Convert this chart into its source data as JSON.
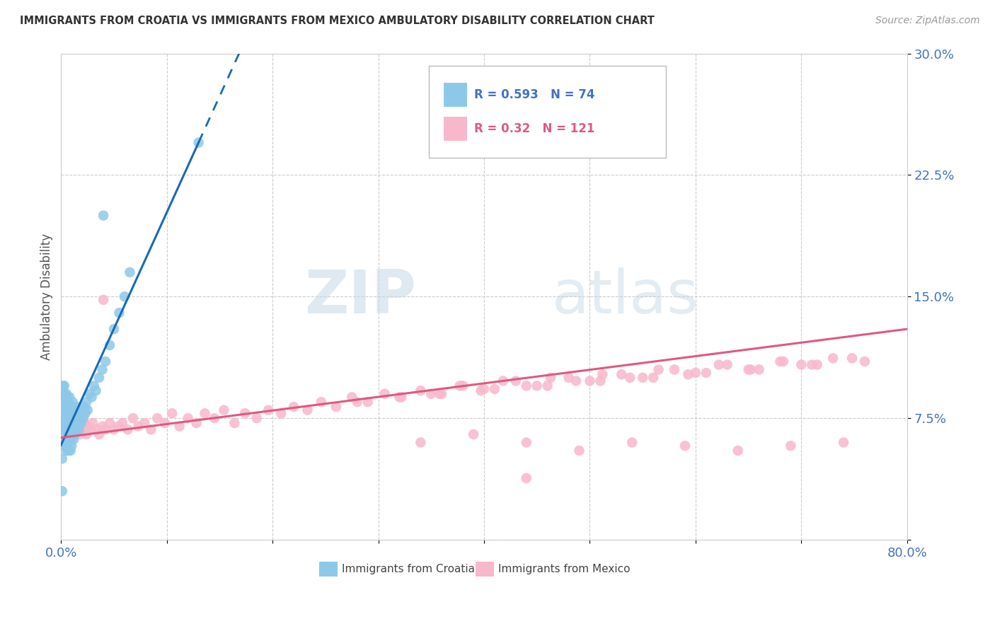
{
  "title": "IMMIGRANTS FROM CROATIA VS IMMIGRANTS FROM MEXICO AMBULATORY DISABILITY CORRELATION CHART",
  "source": "Source: ZipAtlas.com",
  "ylabel": "Ambulatory Disability",
  "xlim": [
    0.0,
    0.8
  ],
  "ylim": [
    0.0,
    0.3
  ],
  "xticks": [
    0.0,
    0.1,
    0.2,
    0.3,
    0.4,
    0.5,
    0.6,
    0.7,
    0.8
  ],
  "yticks": [
    0.0,
    0.075,
    0.15,
    0.225,
    0.3
  ],
  "ytick_labels": [
    "",
    "7.5%",
    "15.0%",
    "22.5%",
    "30.0%"
  ],
  "xtick_labels": [
    "0.0%",
    "",
    "",
    "",
    "",
    "",
    "",
    "",
    "80.0%"
  ],
  "croatia_R": 0.593,
  "croatia_N": 74,
  "mexico_R": 0.32,
  "mexico_N": 121,
  "croatia_color": "#8ec8e8",
  "mexico_color": "#f7b8cc",
  "croatia_line_color": "#1a6ab5",
  "mexico_line_color": "#e05880",
  "background_color": "#ffffff",
  "grid_color": "#cccccc",
  "watermark_zip": "ZIP",
  "watermark_atlas": "atlas",
  "legend_label_croatia": "Immigrants from Croatia",
  "legend_label_mexico": "Immigrants from Mexico",
  "croatia_x": [
    0.001,
    0.001,
    0.002,
    0.002,
    0.002,
    0.002,
    0.002,
    0.003,
    0.003,
    0.003,
    0.003,
    0.003,
    0.003,
    0.004,
    0.004,
    0.004,
    0.004,
    0.004,
    0.005,
    0.005,
    0.005,
    0.005,
    0.005,
    0.005,
    0.006,
    0.006,
    0.006,
    0.006,
    0.007,
    0.007,
    0.007,
    0.007,
    0.008,
    0.008,
    0.008,
    0.009,
    0.009,
    0.009,
    0.01,
    0.01,
    0.01,
    0.011,
    0.011,
    0.012,
    0.012,
    0.013,
    0.013,
    0.014,
    0.015,
    0.015,
    0.016,
    0.017,
    0.018,
    0.019,
    0.02,
    0.021,
    0.022,
    0.023,
    0.024,
    0.025,
    0.027,
    0.029,
    0.031,
    0.033,
    0.036,
    0.039,
    0.042,
    0.046,
    0.05,
    0.055,
    0.06,
    0.065,
    0.04,
    0.13
  ],
  "croatia_y": [
    0.05,
    0.03,
    0.072,
    0.06,
    0.085,
    0.095,
    0.068,
    0.078,
    0.09,
    0.065,
    0.08,
    0.058,
    0.095,
    0.072,
    0.085,
    0.062,
    0.075,
    0.088,
    0.06,
    0.07,
    0.082,
    0.055,
    0.075,
    0.09,
    0.068,
    0.08,
    0.058,
    0.072,
    0.065,
    0.078,
    0.055,
    0.085,
    0.062,
    0.075,
    0.088,
    0.065,
    0.078,
    0.055,
    0.068,
    0.082,
    0.058,
    0.072,
    0.085,
    0.062,
    0.075,
    0.065,
    0.078,
    0.068,
    0.072,
    0.082,
    0.075,
    0.068,
    0.078,
    0.072,
    0.08,
    0.075,
    0.082,
    0.078,
    0.085,
    0.08,
    0.09,
    0.088,
    0.095,
    0.092,
    0.1,
    0.105,
    0.11,
    0.12,
    0.13,
    0.14,
    0.15,
    0.165,
    0.2,
    0.245
  ],
  "mexico_x": [
    0.002,
    0.003,
    0.003,
    0.004,
    0.004,
    0.005,
    0.005,
    0.006,
    0.006,
    0.007,
    0.007,
    0.008,
    0.008,
    0.009,
    0.009,
    0.01,
    0.01,
    0.011,
    0.012,
    0.013,
    0.014,
    0.015,
    0.016,
    0.017,
    0.018,
    0.02,
    0.022,
    0.024,
    0.026,
    0.028,
    0.03,
    0.033,
    0.036,
    0.039,
    0.042,
    0.046,
    0.05,
    0.054,
    0.058,
    0.063,
    0.068,
    0.073,
    0.079,
    0.085,
    0.091,
    0.098,
    0.105,
    0.112,
    0.12,
    0.128,
    0.136,
    0.145,
    0.154,
    0.164,
    0.174,
    0.185,
    0.196,
    0.208,
    0.22,
    0.233,
    0.246,
    0.26,
    0.275,
    0.29,
    0.306,
    0.322,
    0.34,
    0.358,
    0.377,
    0.397,
    0.418,
    0.44,
    0.463,
    0.487,
    0.512,
    0.538,
    0.565,
    0.593,
    0.622,
    0.652,
    0.683,
    0.715,
    0.748,
    0.38,
    0.43,
    0.48,
    0.53,
    0.58,
    0.63,
    0.68,
    0.73,
    0.35,
    0.4,
    0.45,
    0.5,
    0.55,
    0.6,
    0.65,
    0.7,
    0.28,
    0.32,
    0.36,
    0.41,
    0.46,
    0.51,
    0.56,
    0.61,
    0.66,
    0.71,
    0.76,
    0.34,
    0.39,
    0.44,
    0.49,
    0.54,
    0.59,
    0.64,
    0.69,
    0.74,
    0.04,
    0.44
  ],
  "mexico_y": [
    0.08,
    0.075,
    0.09,
    0.07,
    0.085,
    0.068,
    0.078,
    0.072,
    0.088,
    0.065,
    0.082,
    0.068,
    0.075,
    0.062,
    0.078,
    0.065,
    0.08,
    0.07,
    0.072,
    0.068,
    0.075,
    0.07,
    0.068,
    0.072,
    0.065,
    0.068,
    0.072,
    0.065,
    0.07,
    0.068,
    0.072,
    0.068,
    0.065,
    0.07,
    0.068,
    0.072,
    0.068,
    0.07,
    0.072,
    0.068,
    0.075,
    0.07,
    0.072,
    0.068,
    0.075,
    0.072,
    0.078,
    0.07,
    0.075,
    0.072,
    0.078,
    0.075,
    0.08,
    0.072,
    0.078,
    0.075,
    0.08,
    0.078,
    0.082,
    0.08,
    0.085,
    0.082,
    0.088,
    0.085,
    0.09,
    0.088,
    0.092,
    0.09,
    0.095,
    0.092,
    0.098,
    0.095,
    0.1,
    0.098,
    0.102,
    0.1,
    0.105,
    0.102,
    0.108,
    0.105,
    0.11,
    0.108,
    0.112,
    0.095,
    0.098,
    0.1,
    0.102,
    0.105,
    0.108,
    0.11,
    0.112,
    0.09,
    0.093,
    0.095,
    0.098,
    0.1,
    0.103,
    0.105,
    0.108,
    0.085,
    0.088,
    0.09,
    0.093,
    0.095,
    0.098,
    0.1,
    0.103,
    0.105,
    0.108,
    0.11,
    0.06,
    0.065,
    0.06,
    0.055,
    0.06,
    0.058,
    0.055,
    0.058,
    0.06,
    0.148,
    0.038
  ],
  "croatia_trend_x": [
    0.0,
    0.13
  ],
  "croatia_trend_y": [
    0.0585,
    0.245
  ],
  "mexico_trend_x": [
    0.0,
    0.8
  ],
  "mexico_trend_y": [
    0.063,
    0.13
  ]
}
